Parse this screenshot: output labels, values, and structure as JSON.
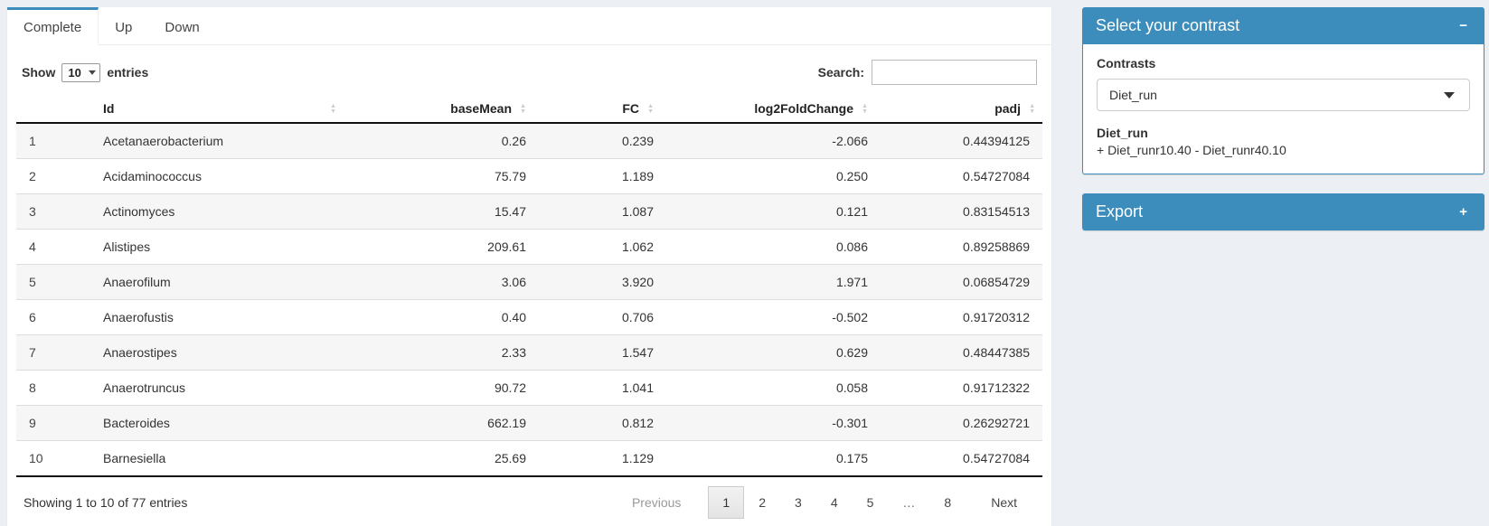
{
  "tabs": [
    {
      "label": "Complete",
      "active": true
    },
    {
      "label": "Up",
      "active": false
    },
    {
      "label": "Down",
      "active": false
    }
  ],
  "table_controls": {
    "show_label": "Show",
    "entries_value": "10",
    "entries_suffix": "entries",
    "search_label": "Search:",
    "search_value": ""
  },
  "table": {
    "columns": [
      {
        "label": "",
        "sortable": false,
        "align": "left"
      },
      {
        "label": "Id",
        "sortable": true,
        "align": "left"
      },
      {
        "label": "baseMean",
        "sortable": true,
        "align": "right"
      },
      {
        "label": "FC",
        "sortable": true,
        "align": "right"
      },
      {
        "label": "log2FoldChange",
        "sortable": true,
        "align": "right"
      },
      {
        "label": "padj",
        "sortable": true,
        "align": "right"
      }
    ],
    "rows": [
      [
        "1",
        "Acetanaerobacterium",
        "0.26",
        "0.239",
        "-2.066",
        "0.44394125"
      ],
      [
        "2",
        "Acidaminococcus",
        "75.79",
        "1.189",
        "0.250",
        "0.54727084"
      ],
      [
        "3",
        "Actinomyces",
        "15.47",
        "1.087",
        "0.121",
        "0.83154513"
      ],
      [
        "4",
        "Alistipes",
        "209.61",
        "1.062",
        "0.086",
        "0.89258869"
      ],
      [
        "5",
        "Anaerofilum",
        "3.06",
        "3.920",
        "1.971",
        "0.06854729"
      ],
      [
        "6",
        "Anaerofustis",
        "0.40",
        "0.706",
        "-0.502",
        "0.91720312"
      ],
      [
        "7",
        "Anaerostipes",
        "2.33",
        "1.547",
        "0.629",
        "0.48447385"
      ],
      [
        "8",
        "Anaerotruncus",
        "90.72",
        "1.041",
        "0.058",
        "0.91712322"
      ],
      [
        "9",
        "Bacteroides",
        "662.19",
        "0.812",
        "-0.301",
        "0.26292721"
      ],
      [
        "10",
        "Barnesiella",
        "25.69",
        "1.129",
        "0.175",
        "0.54727084"
      ]
    ],
    "info": "Showing 1 to 10 of 77 entries",
    "pagination": {
      "previous": "Previous",
      "pages": [
        "1",
        "2",
        "3",
        "4",
        "5",
        "…",
        "8"
      ],
      "active_page": "1",
      "next": "Next"
    }
  },
  "contrast_panel": {
    "title": "Select your contrast",
    "collapse_icon": "−",
    "contrasts_label": "Contrasts",
    "selected_contrast": "Diet_run",
    "contrast_name": "Diet_run",
    "contrast_formula": "+ Diet_runr10.40 - Diet_runr40.10"
  },
  "export_panel": {
    "title": "Export",
    "expand_icon": "+"
  },
  "colors": {
    "accent": "#3c8dbc",
    "page_bg": "#ecf0f5",
    "stripe": "#f6f6f7"
  }
}
